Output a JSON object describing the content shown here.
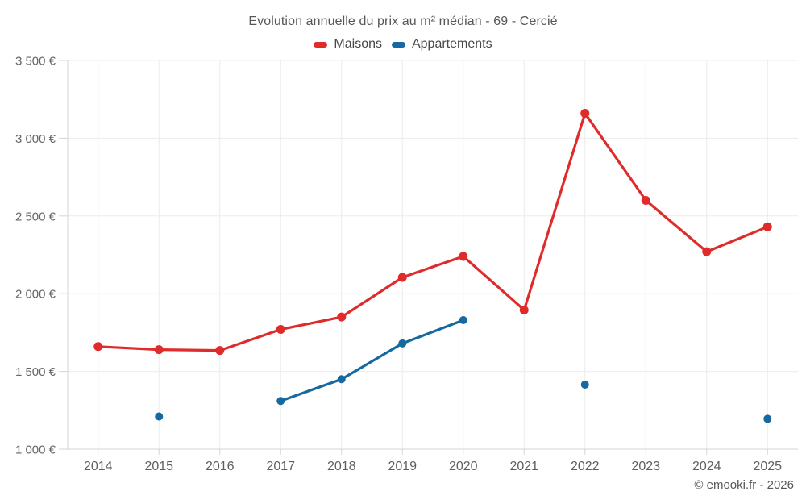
{
  "title": "Evolution annuelle du prix au m² médian - 69 - Cercié",
  "watermark": "© emooki.fr - 2026",
  "legend": [
    {
      "label": "Maisons",
      "color": "#e02b2b"
    },
    {
      "label": "Appartements",
      "color": "#1569a0"
    }
  ],
  "chart_data": {
    "type": "line",
    "title": "Evolution annuelle du prix au m² médian - 69 - Cercié",
    "x": [
      "2014",
      "2015",
      "2016",
      "2017",
      "2018",
      "2019",
      "2020",
      "2021",
      "2022",
      "2023",
      "2024",
      "2025"
    ],
    "series": [
      {
        "name": "Maisons",
        "color": "#e02b2b",
        "values": [
          1660,
          1640,
          1635,
          1770,
          1850,
          2105,
          2240,
          1895,
          3160,
          2600,
          2270,
          2430
        ]
      },
      {
        "name": "Appartements",
        "color": "#1569a0",
        "values": [
          null,
          1210,
          null,
          1310,
          1450,
          1680,
          1830,
          null,
          1415,
          null,
          null,
          1195
        ]
      }
    ],
    "ylim": [
      1000,
      3500
    ],
    "ytick_step": 500,
    "ytick_labels": [
      "1 000 €",
      "1 500 €",
      "2 000 €",
      "2 500 €",
      "3 000 €",
      "3 500 €"
    ],
    "grid": true,
    "legend_position": "top"
  }
}
